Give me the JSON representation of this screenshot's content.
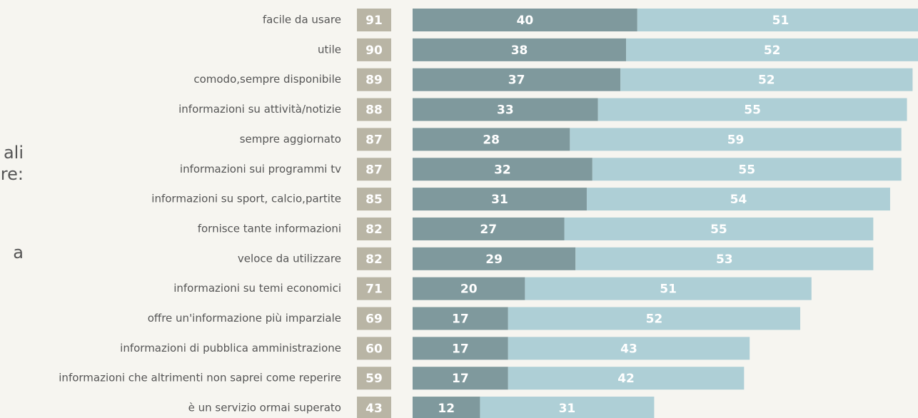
{
  "chart_data": {
    "type": "stacked-bar-horizontal",
    "annotations": [
      "ali",
      "re:",
      "a"
    ],
    "categories": [
      "facile da usare",
      "utile",
      "comodo,sempre disponibile",
      "informazioni su attività/notizie",
      "sempre aggiornato",
      "informazioni sui programmi tv",
      "informazioni su sport, calcio,partite",
      "fornisce tante informazioni",
      "veloce da utilizzare",
      "informazioni su temi economici",
      "offre un'informazione più imparziale",
      "informazioni di pubblica amministrazione",
      "informazioni che altrimenti non saprei come reperire",
      "è un servizio ormai superato"
    ],
    "totals": [
      91,
      90,
      89,
      88,
      87,
      87,
      85,
      82,
      82,
      71,
      69,
      60,
      59,
      43
    ],
    "totals_color": "#b9b5a5",
    "series": [
      {
        "color": "#7f999d",
        "values": [
          40,
          38,
          37,
          33,
          28,
          32,
          31,
          27,
          29,
          20,
          17,
          17,
          17,
          12
        ]
      },
      {
        "color": "#aecfd6",
        "values": [
          51,
          52,
          52,
          55,
          59,
          55,
          54,
          55,
          53,
          51,
          52,
          43,
          42,
          31
        ]
      }
    ]
  }
}
